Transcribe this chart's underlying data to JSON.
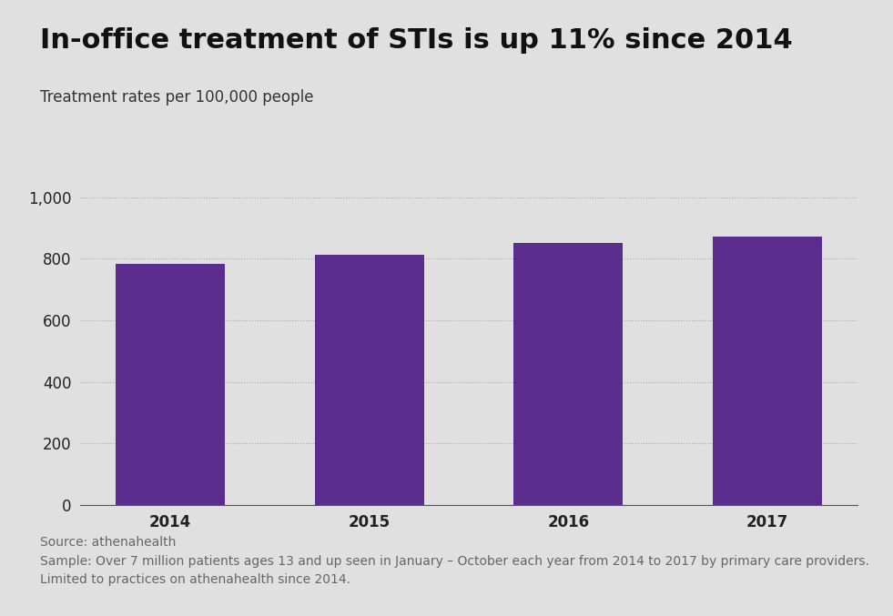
{
  "title": "In-office treatment of STIs is up 11% since 2014",
  "subtitle": "Treatment rates per 100,000 people",
  "categories": [
    "2014",
    "2015",
    "2016",
    "2017"
  ],
  "values": [
    783,
    812,
    851,
    872
  ],
  "bar_color": "#5b2d8e",
  "background_color": "#e0e0e0",
  "ylim": [
    0,
    1000
  ],
  "yticks": [
    0,
    200,
    400,
    600,
    800,
    1000
  ],
  "title_fontsize": 22,
  "subtitle_fontsize": 12,
  "tick_fontsize": 12,
  "source_text": "Source: athenahealth\nSample: Over 7 million patients ages 13 and up seen in January – October each year from 2014 to 2017 by primary care providers.\nLimited to practices on athenahealth since 2014.",
  "source_fontsize": 10,
  "bar_width": 0.55
}
